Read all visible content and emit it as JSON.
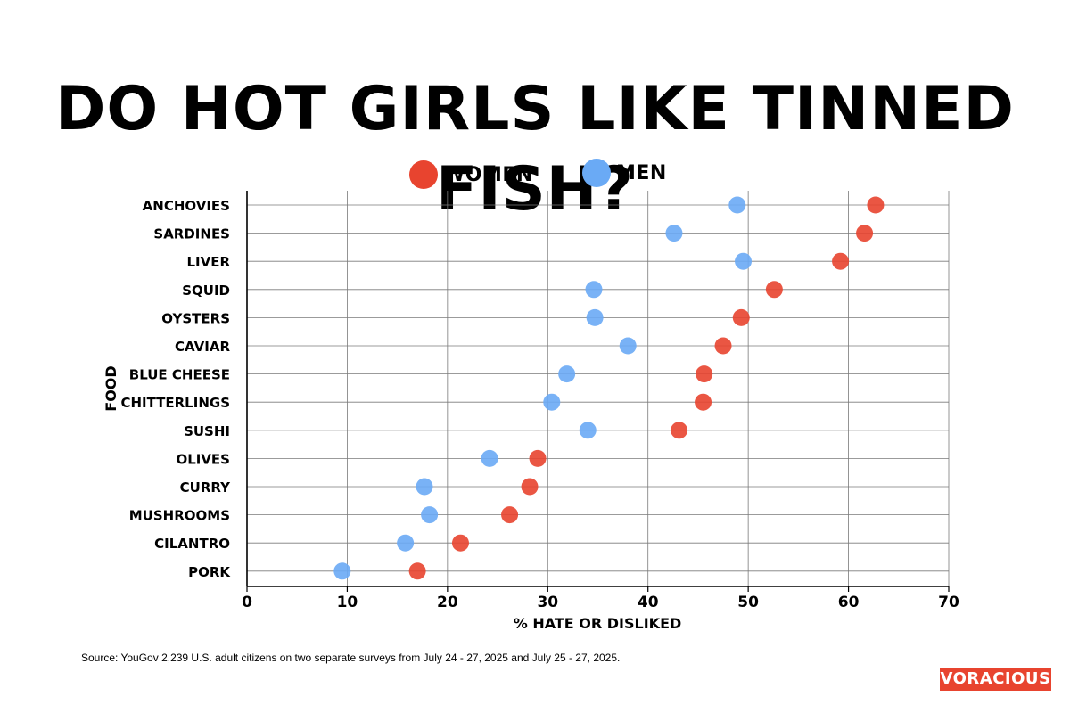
{
  "chart_data": {
    "type": "scatter",
    "title": "DO HOT GIRLS LIKE TINNED FISH?",
    "xlabel": "% HATE OR DISLIKED",
    "ylabel": "FOOD",
    "xlim": [
      0,
      70
    ],
    "xticks": [
      0,
      10,
      20,
      30,
      40,
      50,
      60,
      70
    ],
    "grid": true,
    "legend_placement": "top-center",
    "categories": [
      "ANCHOVIES",
      "SARDINES",
      "LIVER",
      "SQUID",
      "OYSTERS",
      "CAVIAR",
      "BLUE CHEESE",
      "CHITTERLINGS",
      "SUSHI",
      "OLIVES",
      "CURRY",
      "MUSHROOMS",
      "CILANTRO",
      "PORK"
    ],
    "series": [
      {
        "name": "WOMEN",
        "color": "#e8442f",
        "values": [
          62.7,
          61.6,
          59.2,
          52.6,
          49.3,
          47.5,
          45.6,
          45.5,
          43.1,
          29.0,
          28.2,
          26.2,
          21.3,
          17.0
        ]
      },
      {
        "name": "MEN",
        "color": "#6aaaf5",
        "values": [
          48.9,
          42.6,
          49.5,
          34.6,
          34.7,
          38.0,
          31.9,
          30.4,
          34.0,
          24.2,
          17.7,
          18.2,
          15.8,
          9.5
        ]
      }
    ]
  },
  "source": "Source: YouGov  2,239 U.S. adult citizens on two separate surveys from July 24 - 27, 2025 and July 25 - 27, 2025.",
  "logo": "VORACIOUS"
}
